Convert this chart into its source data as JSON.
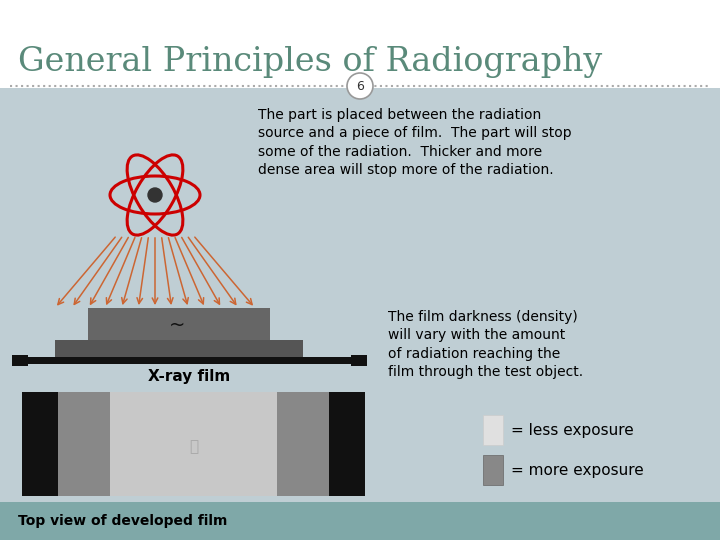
{
  "title": "General Principles of Radiography",
  "title_color": "#5a8a7a",
  "title_fontsize": 24,
  "bg_color": "#bfced4",
  "header_bg": "#ffffff",
  "slide_number": "6",
  "body_text1": "The part is placed between the radiation\nsource and a piece of film.  The part will stop\nsome of the radiation.  Thicker and more\ndense area will stop more of the radiation.",
  "body_text2": "The film darkness (density)\nwill vary with the amount\nof radiation reaching the\nfilm through the test object.",
  "label_xrayfilm": "X-ray film",
  "label_topview": "Top view of developed film",
  "legend_less": "= less exposure",
  "legend_more": "= more exposure",
  "atom_color": "#cc0000",
  "atom_center": "#333333",
  "ray_color": "#cc6633",
  "teal_bar": "#7fa8a8"
}
